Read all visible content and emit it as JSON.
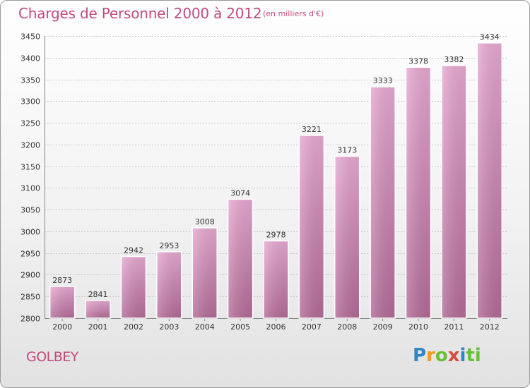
{
  "header": {
    "title": "Charges de Personnel 2000 à 2012",
    "subtitle": "(en milliers d'€)"
  },
  "footer": {
    "commune": "GOLBEY",
    "logo_text": "Proxiti",
    "logo_letters": [
      "P",
      "r",
      "o",
      "x",
      "i",
      "t",
      "i"
    ]
  },
  "colors": {
    "title": "#c14a7e",
    "bar_top": "#e6a9d1",
    "bar_bottom": "#b36b97",
    "grid": "#c8c8c8",
    "axis_text": "#333333"
  },
  "chart_data": {
    "type": "bar",
    "title": "Charges de Personnel 2000 à 2012",
    "subtitle": "(en milliers d'€)",
    "xlabel": "",
    "ylabel": "",
    "categories": [
      "2000",
      "2001",
      "2002",
      "2003",
      "2004",
      "2005",
      "2006",
      "2007",
      "2008",
      "2009",
      "2010",
      "2011",
      "2012"
    ],
    "values": [
      2873,
      2841,
      2942,
      2953,
      3008,
      3074,
      2978,
      3221,
      3173,
      3333,
      3378,
      3382,
      3434
    ],
    "ylim": [
      2800,
      3450
    ],
    "yticks": [
      2800,
      2850,
      2900,
      2950,
      3000,
      3050,
      3100,
      3150,
      3200,
      3250,
      3300,
      3350,
      3400,
      3450
    ],
    "grid": true,
    "data_labels": true
  }
}
